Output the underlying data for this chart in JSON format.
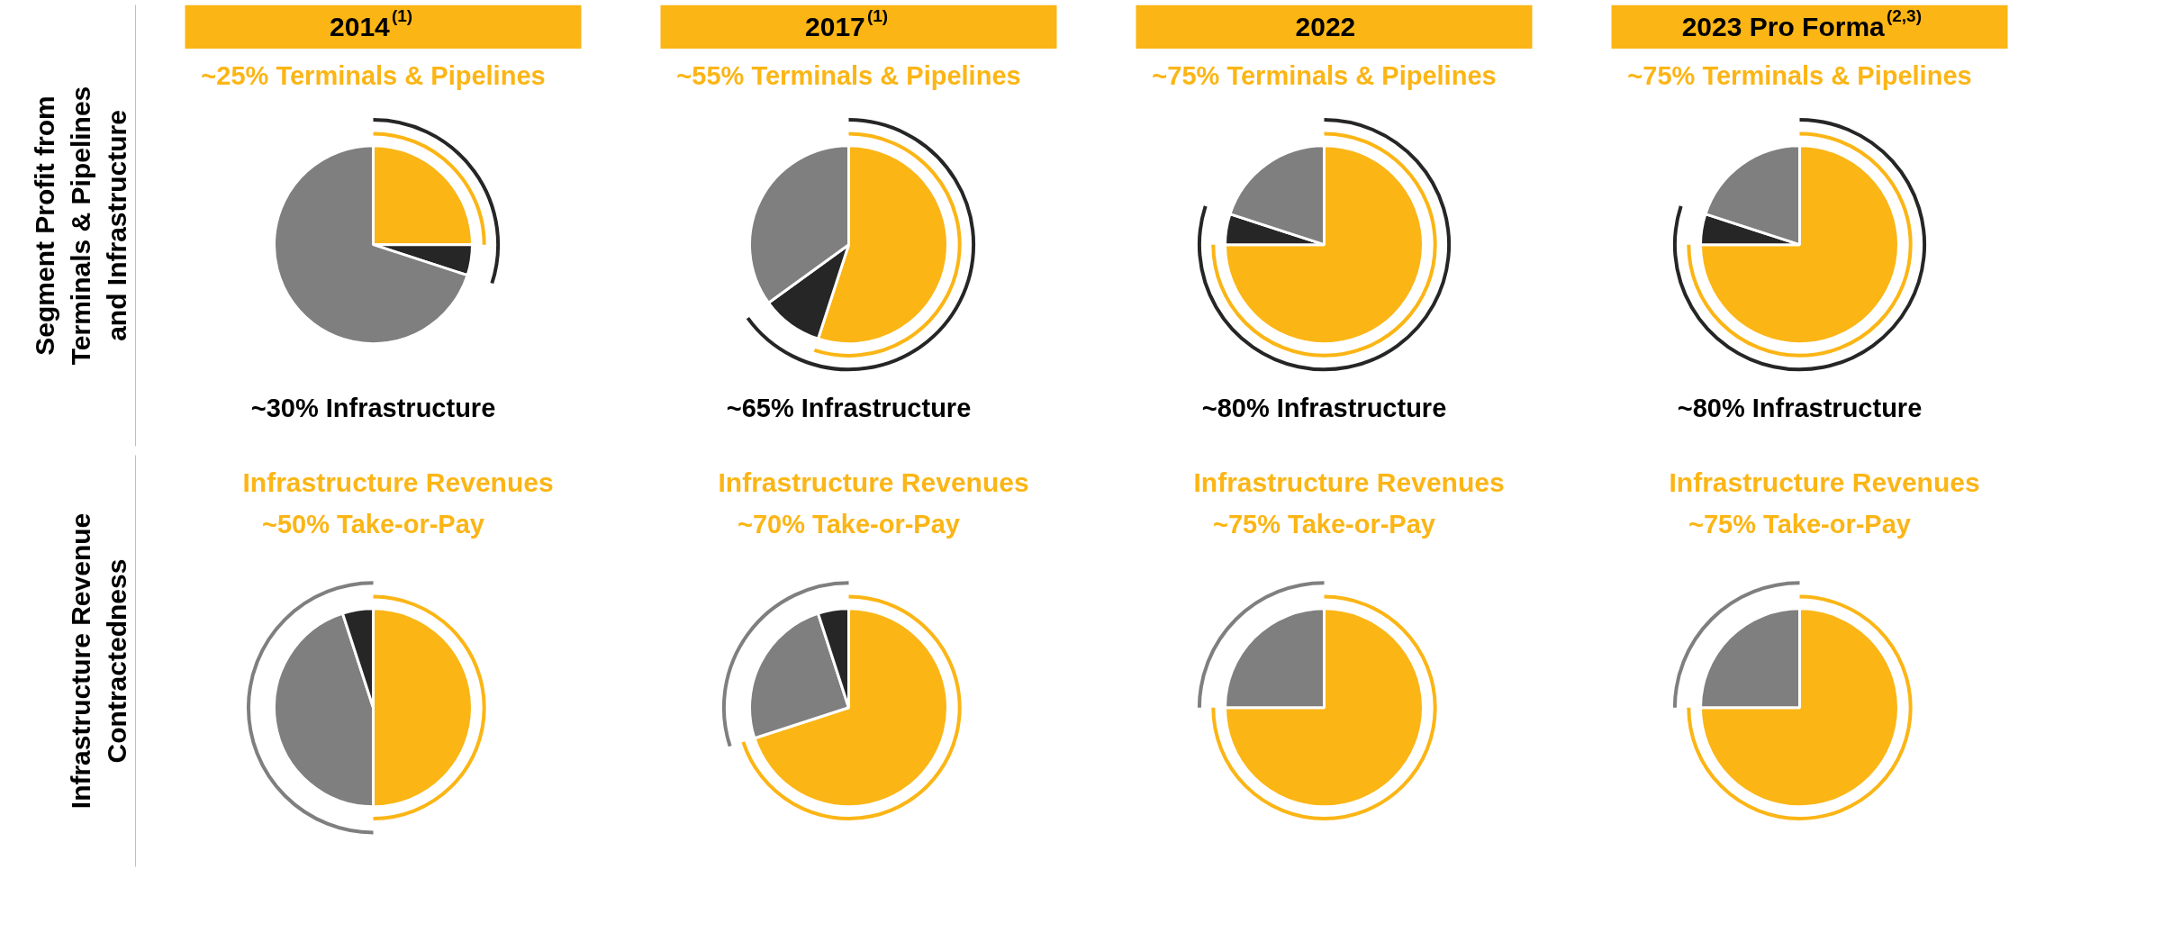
{
  "chart_data": [
    {
      "type": "pie",
      "title": "2014$^{(1)}$",
      "subtitle": "~25% Terminals & Pipelines",
      "ylabel": "Segment Profit from Terminals & Pipelines and Infrastructure",
      "annotations": [
        "~30% Infrastructure"
      ],
      "categories": [
        null,
        null,
        null
      ],
      "values": [
        25,
        5,
        70
      ],
      "colors": [
        "#fbb515",
        "#262626",
        "#7f7f7f"
      ]
    },
    {
      "type": "pie",
      "title": "2017$^{(1)}$",
      "subtitle": "~55% Terminals & Pipelines",
      "annotations": [
        "~65% Infrastructure"
      ],
      "categories": [
        null,
        null,
        null
      ],
      "values": [
        55,
        10,
        35
      ],
      "colors": [
        "#fbb515",
        "#262626",
        "#7f7f7f"
      ]
    },
    {
      "type": "pie",
      "title": "2022",
      "subtitle": "~75% Terminals & Pipelines",
      "annotations": [
        "~80% Infrastructure"
      ],
      "categories": [
        null,
        null,
        null
      ],
      "values": [
        75,
        5,
        20
      ],
      "colors": [
        "#fbb515",
        "#262626",
        "#7f7f7f"
      ]
    },
    {
      "type": "pie",
      "title": "2023 Pro Forma$^{(2,3)}$",
      "subtitle": "~75% Terminals & Pipelines",
      "annotations": [
        "~80% Infrastructure"
      ],
      "categories": [
        null,
        null,
        null
      ],
      "values": [
        75,
        5,
        20
      ],
      "colors": [
        "#fbb515",
        "#262626",
        "#7f7f7f"
      ]
    },
    {
      "type": "pie",
      "title": "Infrastructure Revenues",
      "subtitle": "~50% Take-or-Pay",
      "ylabel": "Infrastructure Revenue Contractedness",
      "categories": [
        null,
        null,
        null
      ],
      "values": [
        50,
        45,
        5
      ],
      "colors": [
        "#fbb515",
        "#7f7f7f",
        "#262626"
      ]
    },
    {
      "type": "pie",
      "title": "Infrastructure Revenues",
      "subtitle": "~70% Take-or-Pay",
      "categories": [
        null,
        null,
        null
      ],
      "values": [
        70,
        25,
        5
      ],
      "colors": [
        "#fbb515",
        "#7f7f7f",
        "#262626"
      ]
    },
    {
      "type": "pie",
      "title": "Infrastructure Revenues",
      "subtitle": "~75% Take-or-Pay",
      "categories": [
        null,
        null
      ],
      "values": [
        75,
        25
      ],
      "colors": [
        "#fbb515",
        "#7f7f7f"
      ]
    },
    {
      "type": "pie",
      "title": "Infrastructure Revenues",
      "subtitle": "~75% Take-or-Pay",
      "categories": [
        null,
        null
      ],
      "values": [
        75,
        25
      ],
      "colors": [
        "#fbb515",
        "#7f7f7f"
      ]
    }
  ]
}
